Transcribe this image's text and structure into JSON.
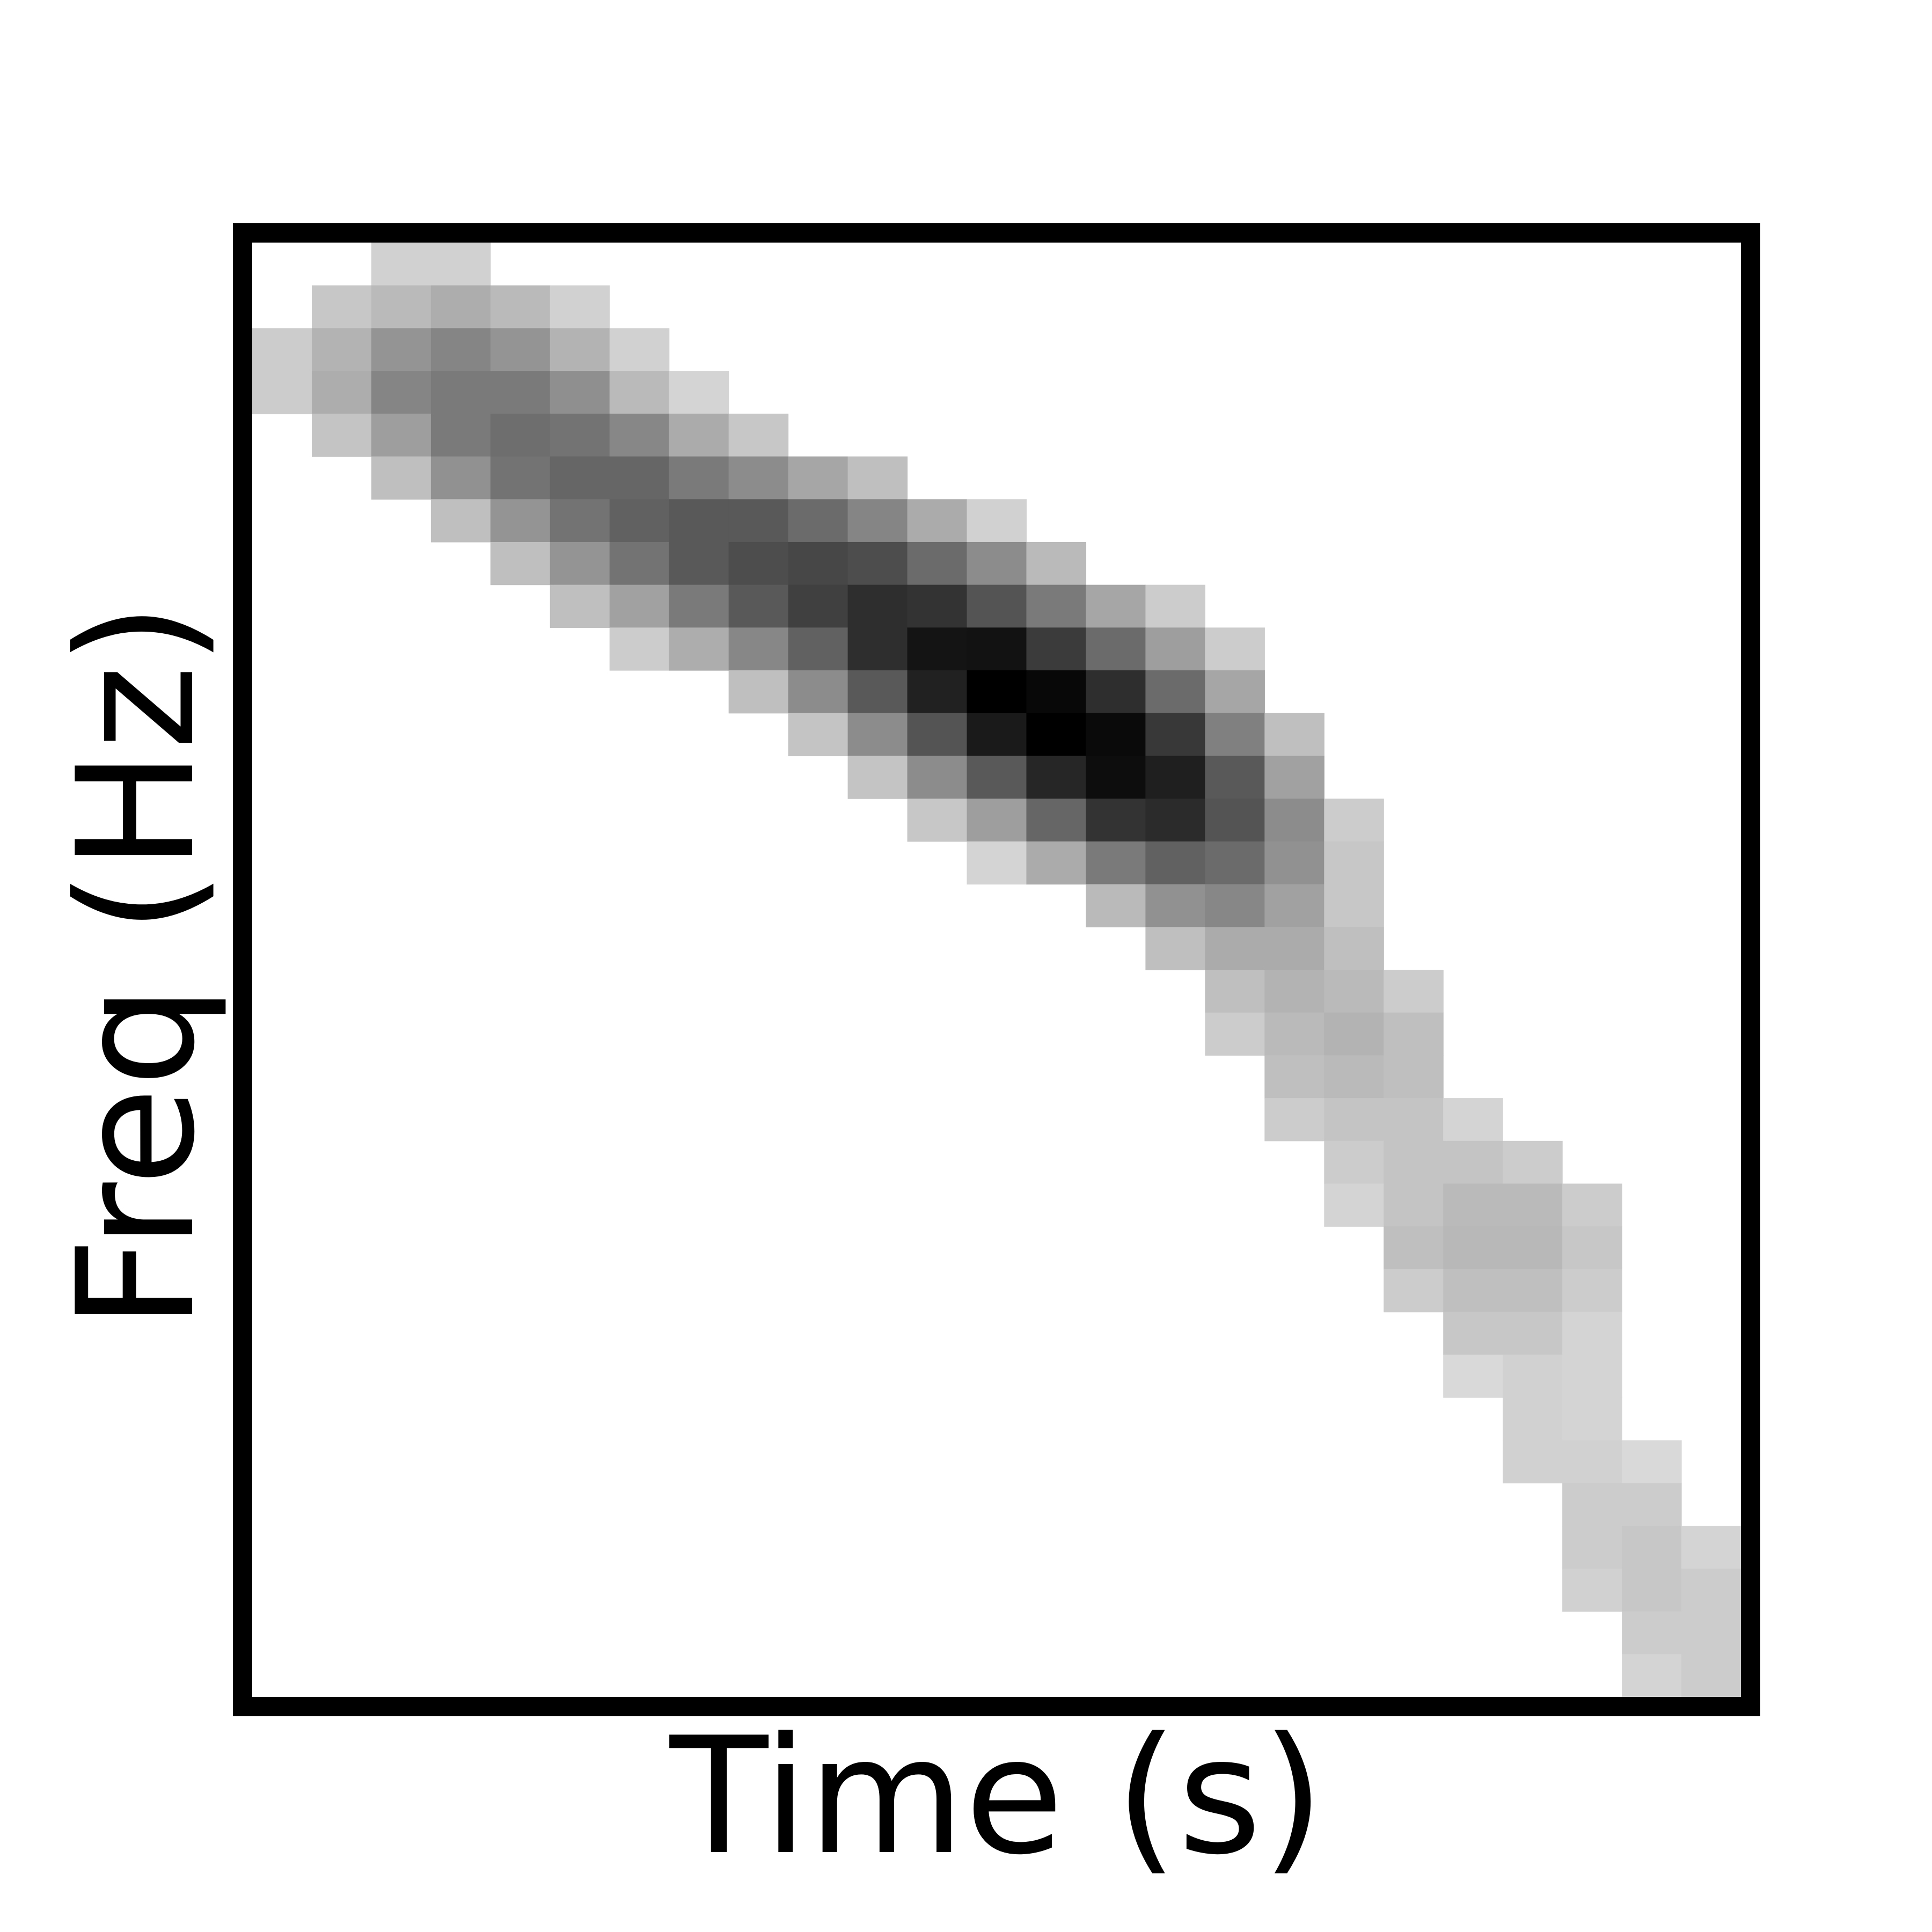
{
  "chart_data": {
    "type": "heatmap",
    "title": "",
    "xlabel": "Time (s)",
    "ylabel": "Freq (Hz)",
    "colormap": "grayscale (white = low, black = high)",
    "grid": false,
    "legend": "none",
    "ticks": "none",
    "n_time_bins": 25,
    "n_freq_bins": 34,
    "cells_note": "each cell: [time_index, freq_row_index_from_top, intensity 0-1]",
    "cells": [
      [
        2,
        0,
        0.18
      ],
      [
        3,
        0,
        0.18
      ],
      [
        1,
        1,
        0.22
      ],
      [
        2,
        1,
        0.27
      ],
      [
        3,
        1,
        0.32
      ],
      [
        4,
        1,
        0.27
      ],
      [
        5,
        1,
        0.18
      ],
      [
        0,
        2,
        0.2
      ],
      [
        1,
        2,
        0.3
      ],
      [
        2,
        2,
        0.42
      ],
      [
        3,
        2,
        0.48
      ],
      [
        4,
        2,
        0.42
      ],
      [
        5,
        2,
        0.3
      ],
      [
        6,
        2,
        0.18
      ],
      [
        0,
        3,
        0.2
      ],
      [
        1,
        3,
        0.32
      ],
      [
        2,
        3,
        0.48
      ],
      [
        3,
        3,
        0.52
      ],
      [
        4,
        3,
        0.52
      ],
      [
        5,
        3,
        0.44
      ],
      [
        6,
        3,
        0.27
      ],
      [
        7,
        3,
        0.17
      ],
      [
        1,
        4,
        0.23
      ],
      [
        2,
        4,
        0.38
      ],
      [
        3,
        4,
        0.52
      ],
      [
        4,
        4,
        0.57
      ],
      [
        5,
        4,
        0.55
      ],
      [
        6,
        4,
        0.47
      ],
      [
        7,
        4,
        0.33
      ],
      [
        8,
        4,
        0.22
      ],
      [
        2,
        5,
        0.25
      ],
      [
        3,
        5,
        0.43
      ],
      [
        4,
        5,
        0.55
      ],
      [
        5,
        5,
        0.6
      ],
      [
        6,
        5,
        0.6
      ],
      [
        7,
        5,
        0.52
      ],
      [
        8,
        5,
        0.45
      ],
      [
        9,
        5,
        0.35
      ],
      [
        10,
        5,
        0.25
      ],
      [
        3,
        6,
        0.25
      ],
      [
        4,
        6,
        0.42
      ],
      [
        5,
        6,
        0.55
      ],
      [
        6,
        6,
        0.62
      ],
      [
        7,
        6,
        0.65
      ],
      [
        8,
        6,
        0.65
      ],
      [
        9,
        6,
        0.58
      ],
      [
        10,
        6,
        0.48
      ],
      [
        11,
        6,
        0.33
      ],
      [
        12,
        6,
        0.18
      ],
      [
        4,
        7,
        0.25
      ],
      [
        5,
        7,
        0.42
      ],
      [
        6,
        7,
        0.55
      ],
      [
        7,
        7,
        0.65
      ],
      [
        8,
        7,
        0.7
      ],
      [
        9,
        7,
        0.72
      ],
      [
        10,
        7,
        0.7
      ],
      [
        11,
        7,
        0.58
      ],
      [
        12,
        7,
        0.45
      ],
      [
        13,
        7,
        0.27
      ],
      [
        5,
        8,
        0.25
      ],
      [
        6,
        8,
        0.37
      ],
      [
        7,
        8,
        0.52
      ],
      [
        8,
        8,
        0.65
      ],
      [
        9,
        8,
        0.75
      ],
      [
        10,
        8,
        0.82
      ],
      [
        11,
        8,
        0.8
      ],
      [
        12,
        8,
        0.67
      ],
      [
        13,
        8,
        0.52
      ],
      [
        14,
        8,
        0.35
      ],
      [
        15,
        8,
        0.2
      ],
      [
        6,
        9,
        0.2
      ],
      [
        7,
        9,
        0.32
      ],
      [
        8,
        9,
        0.47
      ],
      [
        9,
        9,
        0.62
      ],
      [
        10,
        9,
        0.82
      ],
      [
        11,
        9,
        0.92
      ],
      [
        12,
        9,
        0.93
      ],
      [
        13,
        9,
        0.77
      ],
      [
        14,
        9,
        0.58
      ],
      [
        15,
        9,
        0.38
      ],
      [
        16,
        9,
        0.2
      ],
      [
        8,
        10,
        0.25
      ],
      [
        9,
        10,
        0.45
      ],
      [
        10,
        10,
        0.65
      ],
      [
        11,
        10,
        0.87
      ],
      [
        12,
        10,
        1.0
      ],
      [
        13,
        10,
        0.97
      ],
      [
        14,
        10,
        0.82
      ],
      [
        15,
        10,
        0.58
      ],
      [
        16,
        10,
        0.35
      ],
      [
        9,
        11,
        0.23
      ],
      [
        10,
        11,
        0.45
      ],
      [
        11,
        11,
        0.67
      ],
      [
        12,
        11,
        0.9
      ],
      [
        13,
        11,
        1.0
      ],
      [
        14,
        11,
        0.96
      ],
      [
        15,
        11,
        0.78
      ],
      [
        16,
        11,
        0.5
      ],
      [
        17,
        11,
        0.25
      ],
      [
        10,
        12,
        0.23
      ],
      [
        11,
        12,
        0.45
      ],
      [
        12,
        12,
        0.65
      ],
      [
        13,
        12,
        0.85
      ],
      [
        14,
        12,
        0.95
      ],
      [
        15,
        12,
        0.88
      ],
      [
        16,
        12,
        0.65
      ],
      [
        17,
        12,
        0.37
      ],
      [
        11,
        13,
        0.22
      ],
      [
        12,
        13,
        0.38
      ],
      [
        13,
        13,
        0.6
      ],
      [
        14,
        13,
        0.8
      ],
      [
        15,
        13,
        0.83
      ],
      [
        16,
        13,
        0.67
      ],
      [
        17,
        13,
        0.45
      ],
      [
        18,
        13,
        0.2
      ],
      [
        12,
        14,
        0.17
      ],
      [
        13,
        14,
        0.33
      ],
      [
        14,
        14,
        0.52
      ],
      [
        15,
        14,
        0.62
      ],
      [
        16,
        14,
        0.58
      ],
      [
        17,
        14,
        0.43
      ],
      [
        18,
        14,
        0.22
      ],
      [
        14,
        15,
        0.27
      ],
      [
        15,
        15,
        0.43
      ],
      [
        16,
        15,
        0.47
      ],
      [
        17,
        15,
        0.37
      ],
      [
        18,
        15,
        0.22
      ],
      [
        15,
        16,
        0.25
      ],
      [
        16,
        16,
        0.33
      ],
      [
        17,
        16,
        0.33
      ],
      [
        18,
        16,
        0.25
      ],
      [
        16,
        17,
        0.25
      ],
      [
        17,
        17,
        0.3
      ],
      [
        18,
        17,
        0.27
      ],
      [
        19,
        17,
        0.2
      ],
      [
        16,
        18,
        0.2
      ],
      [
        17,
        18,
        0.27
      ],
      [
        18,
        18,
        0.3
      ],
      [
        19,
        18,
        0.25
      ],
      [
        17,
        19,
        0.25
      ],
      [
        18,
        19,
        0.27
      ],
      [
        19,
        19,
        0.25
      ],
      [
        17,
        20,
        0.2
      ],
      [
        18,
        20,
        0.23
      ],
      [
        19,
        20,
        0.23
      ],
      [
        20,
        20,
        0.17
      ],
      [
        18,
        21,
        0.2
      ],
      [
        19,
        21,
        0.23
      ],
      [
        20,
        21,
        0.23
      ],
      [
        21,
        21,
        0.2
      ],
      [
        18,
        22,
        0.17
      ],
      [
        19,
        22,
        0.23
      ],
      [
        20,
        22,
        0.27
      ],
      [
        21,
        22,
        0.27
      ],
      [
        22,
        22,
        0.2
      ],
      [
        19,
        23,
        0.25
      ],
      [
        20,
        23,
        0.28
      ],
      [
        21,
        23,
        0.28
      ],
      [
        22,
        23,
        0.22
      ],
      [
        19,
        24,
        0.2
      ],
      [
        20,
        24,
        0.25
      ],
      [
        21,
        24,
        0.25
      ],
      [
        22,
        24,
        0.2
      ],
      [
        20,
        25,
        0.22
      ],
      [
        21,
        25,
        0.22
      ],
      [
        22,
        25,
        0.17
      ],
      [
        20,
        26,
        0.15
      ],
      [
        21,
        26,
        0.18
      ],
      [
        22,
        26,
        0.17
      ],
      [
        21,
        27,
        0.18
      ],
      [
        22,
        27,
        0.17
      ],
      [
        21,
        28,
        0.18
      ],
      [
        22,
        28,
        0.18
      ],
      [
        23,
        28,
        0.15
      ],
      [
        22,
        29,
        0.2
      ],
      [
        23,
        29,
        0.2
      ],
      [
        22,
        30,
        0.2
      ],
      [
        23,
        30,
        0.22
      ],
      [
        24,
        30,
        0.17
      ],
      [
        22,
        31,
        0.18
      ],
      [
        23,
        31,
        0.22
      ],
      [
        24,
        31,
        0.2
      ],
      [
        23,
        32,
        0.2
      ],
      [
        24,
        32,
        0.2
      ],
      [
        23,
        33,
        0.17
      ],
      [
        24,
        33,
        0.2
      ]
    ]
  }
}
